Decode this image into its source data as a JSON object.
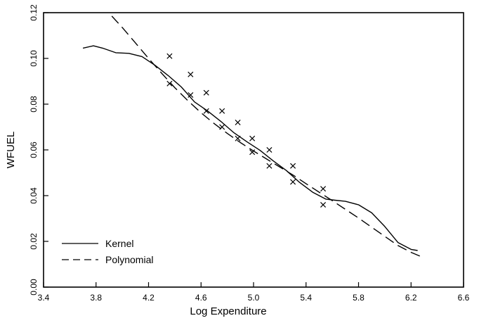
{
  "chart_data": {
    "type": "line",
    "xlabel": "Log Expenditure",
    "ylabel": "WFUEL",
    "xlim": [
      3.4,
      6.6
    ],
    "ylim": [
      0.0,
      0.12
    ],
    "x_ticks": [
      "3.4",
      "3.8",
      "4.2",
      "4.6",
      "5.0",
      "5.4",
      "5.8",
      "6.2",
      "6.6"
    ],
    "y_ticks": [
      "0.00",
      "0.02",
      "0.04",
      "0.06",
      "0.08",
      "0.10",
      "0.12"
    ],
    "grid": false,
    "legend_position": "bottom-left",
    "series": [
      {
        "name": "Kernel",
        "style": "solid",
        "x": [
          3.7,
          3.78,
          3.85,
          3.95,
          4.05,
          4.15,
          4.25,
          4.35,
          4.45,
          4.55,
          4.65,
          4.75,
          4.85,
          4.95,
          5.05,
          5.15,
          5.25,
          5.35,
          5.45,
          5.55,
          5.62,
          5.7,
          5.8,
          5.9,
          6.0,
          6.1,
          6.2,
          6.25
        ],
        "y": [
          0.1045,
          0.1055,
          0.1045,
          0.1025,
          0.1022,
          0.1008,
          0.097,
          0.0925,
          0.0875,
          0.081,
          0.077,
          0.0725,
          0.0675,
          0.0635,
          0.0598,
          0.0552,
          0.051,
          0.0458,
          0.0415,
          0.0385,
          0.038,
          0.0375,
          0.036,
          0.0325,
          0.0265,
          0.0195,
          0.0165,
          0.016
        ]
      },
      {
        "name": "Polynomial",
        "style": "dashed",
        "x": [
          3.92,
          4.0,
          4.1,
          4.2,
          4.3,
          4.4,
          4.5,
          4.6,
          4.7,
          4.8,
          4.9,
          5.0,
          5.1,
          5.2,
          5.3,
          5.4,
          5.5,
          5.6,
          5.7,
          5.8,
          5.9,
          6.0,
          6.1,
          6.2,
          6.27
        ],
        "y": [
          0.1185,
          0.1135,
          0.1068,
          0.1,
          0.0935,
          0.0872,
          0.0815,
          0.0762,
          0.0715,
          0.0672,
          0.0632,
          0.0595,
          0.056,
          0.0525,
          0.049,
          0.0452,
          0.0415,
          0.0378,
          0.034,
          0.0302,
          0.0262,
          0.0222,
          0.0182,
          0.0152,
          0.0135
        ]
      }
    ],
    "scatter": {
      "marker": "x",
      "x": [
        4.36,
        4.36,
        4.52,
        4.52,
        4.64,
        4.64,
        4.76,
        4.76,
        4.88,
        4.88,
        4.99,
        4.99,
        5.12,
        5.12,
        5.3,
        5.3,
        5.53,
        5.53
      ],
      "y": [
        0.101,
        0.089,
        0.093,
        0.084,
        0.085,
        0.077,
        0.077,
        0.07,
        0.072,
        0.065,
        0.065,
        0.059,
        0.06,
        0.053,
        0.053,
        0.046,
        0.043,
        0.036
      ]
    }
  }
}
